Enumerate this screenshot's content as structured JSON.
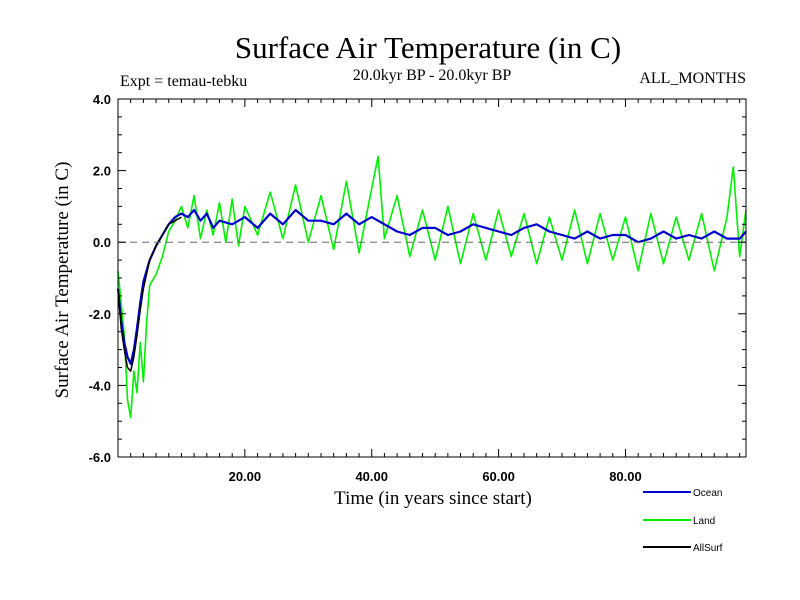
{
  "chart_data": {
    "type": "line",
    "title": "Surface Air Temperature (in C)",
    "subtitle_left": "Expt = temau-tebku",
    "subtitle_center": "20.0kyr BP - 20.0kyr BP",
    "subtitle_right": "ALL_MONTHS",
    "xlabel": "Time (in years since start)",
    "ylabel": "Surface Air Temperature (in C)",
    "xlim": [
      0,
      99
    ],
    "ylim": [
      -6.0,
      4.0
    ],
    "x_ticks": [
      20,
      40,
      60,
      80
    ],
    "x_tick_labels": [
      "20.00",
      "40.00",
      "60.00",
      "80.00"
    ],
    "y_ticks": [
      -6,
      -4,
      -2,
      0,
      2,
      4
    ],
    "y_tick_labels": [
      "-6.0",
      "-4.0",
      "-2.0",
      "0.0",
      "2.0",
      "4.0"
    ],
    "reference_line": 0,
    "grid": false,
    "legend_position": "bottom-right",
    "series": [
      {
        "name": "Land",
        "color": "#00ee00",
        "x": [
          0,
          1,
          1.5,
          2,
          2.5,
          3,
          3.5,
          4,
          4.5,
          5,
          6,
          7,
          8,
          9,
          10,
          11,
          12,
          13,
          14,
          15,
          16,
          17,
          18,
          19,
          20,
          22,
          24,
          26,
          28,
          30,
          32,
          34,
          36,
          38,
          40,
          41,
          42,
          44,
          46,
          48,
          50,
          52,
          54,
          56,
          58,
          60,
          62,
          64,
          66,
          68,
          70,
          72,
          74,
          76,
          78,
          80,
          82,
          84,
          86,
          88,
          90,
          92,
          94,
          96,
          97,
          98,
          99
        ],
        "values": [
          -0.8,
          -2.6,
          -4.4,
          -4.9,
          -3.6,
          -4.2,
          -2.8,
          -3.9,
          -2.3,
          -1.2,
          -0.9,
          -0.4,
          0.3,
          0.6,
          1.0,
          0.4,
          1.3,
          0.1,
          0.9,
          0.2,
          1.1,
          0.0,
          1.2,
          -0.1,
          1.0,
          0.2,
          1.4,
          0.1,
          1.6,
          0.0,
          1.3,
          -0.2,
          1.7,
          -0.3,
          1.5,
          2.4,
          0.1,
          1.3,
          -0.4,
          0.9,
          -0.5,
          1.0,
          -0.6,
          0.8,
          -0.5,
          0.9,
          -0.4,
          0.8,
          -0.6,
          0.7,
          -0.5,
          0.9,
          -0.6,
          0.8,
          -0.5,
          0.7,
          -0.8,
          0.8,
          -0.6,
          0.7,
          -0.5,
          0.8,
          -0.8,
          0.7,
          2.1,
          -0.4,
          0.9
        ]
      },
      {
        "name": "Ocean",
        "color": "#0000cc",
        "x": [
          0,
          0.5,
          1,
          1.5,
          2,
          2.5,
          3,
          3.5,
          4,
          5,
          6,
          7,
          8,
          9,
          10,
          11,
          12,
          13,
          14,
          15,
          16,
          18,
          20,
          22,
          24,
          26,
          28,
          30,
          32,
          34,
          36,
          38,
          40,
          42,
          44,
          46,
          48,
          50,
          52,
          54,
          56,
          58,
          60,
          62,
          64,
          66,
          68,
          70,
          72,
          74,
          76,
          78,
          80,
          82,
          84,
          86,
          88,
          90,
          92,
          94,
          96,
          98,
          99
        ],
        "values": [
          -1.3,
          -2.2,
          -2.8,
          -3.2,
          -3.4,
          -3.0,
          -2.4,
          -1.7,
          -1.1,
          -0.5,
          -0.1,
          0.2,
          0.5,
          0.7,
          0.8,
          0.7,
          0.9,
          0.6,
          0.8,
          0.4,
          0.6,
          0.5,
          0.7,
          0.4,
          0.8,
          0.5,
          0.9,
          0.6,
          0.6,
          0.5,
          0.8,
          0.5,
          0.7,
          0.5,
          0.3,
          0.2,
          0.4,
          0.4,
          0.2,
          0.3,
          0.5,
          0.4,
          0.3,
          0.2,
          0.4,
          0.5,
          0.3,
          0.2,
          0.1,
          0.3,
          0.1,
          0.2,
          0.2,
          0.0,
          0.1,
          0.3,
          0.1,
          0.2,
          0.1,
          0.3,
          0.1,
          0.1,
          0.3
        ]
      },
      {
        "name": "AllSurf",
        "color": "#000000",
        "x": [
          0,
          0.5,
          1,
          1.5,
          2,
          2.5,
          3,
          3.5,
          4,
          4.5,
          5,
          6,
          7,
          8,
          9,
          10
        ],
        "values": [
          -1.3,
          -2.4,
          -3.0,
          -3.5,
          -3.6,
          -3.2,
          -2.6,
          -1.9,
          -1.3,
          -0.9,
          -0.5,
          -0.1,
          0.2,
          0.5,
          0.6,
          0.7
        ]
      }
    ]
  }
}
